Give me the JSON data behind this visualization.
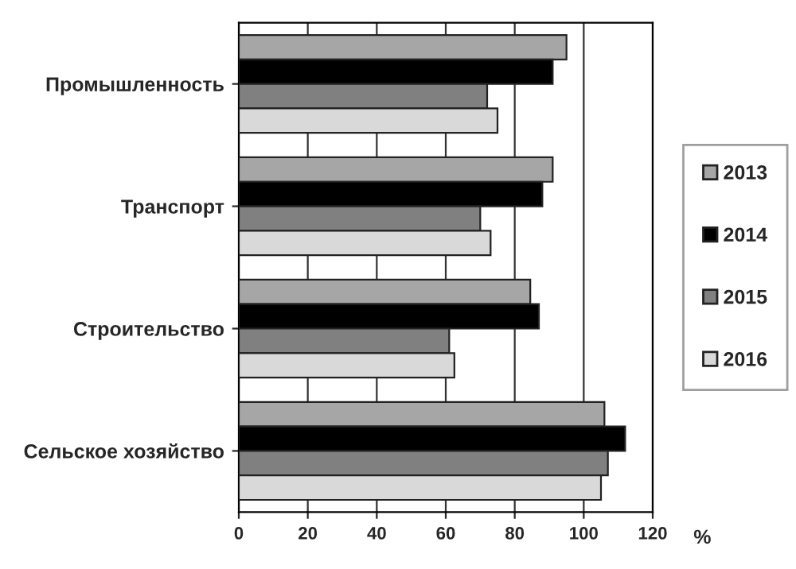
{
  "chart_data": {
    "type": "bar",
    "orientation": "horizontal",
    "categories": [
      "Промышленность",
      "Транспорт",
      "Строительство",
      "Сельское хозяйство"
    ],
    "series": [
      {
        "name": "2013",
        "color": "#a6a6a6",
        "values": [
          95,
          91,
          84.5,
          106
        ]
      },
      {
        "name": "2014",
        "color": "#000000",
        "values": [
          91,
          88,
          87,
          112
        ]
      },
      {
        "name": "2015",
        "color": "#808080",
        "values": [
          72,
          70,
          61,
          107
        ]
      },
      {
        "name": "2016",
        "color": "#d9d9d9",
        "values": [
          75,
          73,
          62.5,
          105
        ]
      }
    ],
    "xlabel": "%",
    "xlim": [
      0,
      120
    ],
    "xticks": [
      0,
      20,
      40,
      60,
      80,
      100,
      120
    ],
    "grid": "x",
    "legend": "right"
  }
}
